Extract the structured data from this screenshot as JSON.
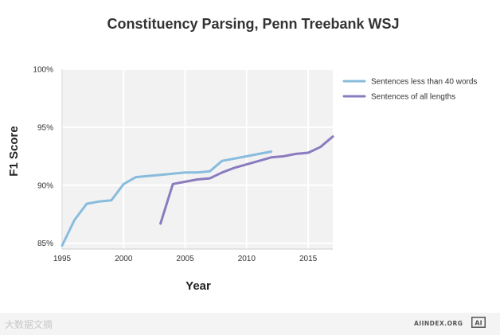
{
  "chart_data": {
    "type": "line",
    "title": "Constituency Parsing, Penn Treebank WSJ",
    "xlabel": "Year",
    "ylabel": "F1 Score",
    "xlim": [
      1995,
      2017
    ],
    "ylim": [
      84.5,
      100
    ],
    "x_ticks": [
      1995,
      2000,
      2005,
      2010,
      2015
    ],
    "y_ticks": [
      85,
      90,
      95,
      100
    ],
    "x_tick_labels": [
      "1995",
      "2000",
      "2005",
      "2010",
      "2015"
    ],
    "y_tick_labels": [
      "85%",
      "90%",
      "95%",
      "100%"
    ],
    "grid": true,
    "legend_position": "right",
    "series": [
      {
        "name": "Sentences less than 40 words",
        "color": "#88bcdd",
        "points": [
          [
            1995,
            84.8
          ],
          [
            1996,
            87.0
          ],
          [
            1997,
            88.4
          ],
          [
            1998,
            88.6
          ],
          [
            1999,
            88.7
          ],
          [
            2000,
            90.1
          ],
          [
            2001,
            90.7
          ],
          [
            2002,
            90.8
          ],
          [
            2003,
            90.9
          ],
          [
            2004,
            91.0
          ],
          [
            2005,
            91.1
          ],
          [
            2006,
            91.1
          ],
          [
            2007,
            91.2
          ],
          [
            2008,
            92.1
          ],
          [
            2009,
            92.3
          ],
          [
            2010,
            92.5
          ],
          [
            2011,
            92.7
          ],
          [
            2012,
            92.9
          ]
        ]
      },
      {
        "name": "Sentences of all lengths",
        "color": "#8a7bbf",
        "points": [
          [
            2003,
            86.7
          ],
          [
            2004,
            90.1
          ],
          [
            2005,
            90.3
          ],
          [
            2006,
            90.5
          ],
          [
            2007,
            90.6
          ],
          [
            2008,
            91.1
          ],
          [
            2009,
            91.5
          ],
          [
            2010,
            91.8
          ],
          [
            2011,
            92.1
          ],
          [
            2012,
            92.4
          ],
          [
            2013,
            92.5
          ],
          [
            2014,
            92.7
          ],
          [
            2015,
            92.8
          ],
          [
            2016,
            93.3
          ],
          [
            2017,
            94.2
          ]
        ]
      }
    ]
  },
  "footer": {
    "watermark": "大数据文摘",
    "source": "AIINDEX.ORG",
    "logo_text": "AI"
  }
}
